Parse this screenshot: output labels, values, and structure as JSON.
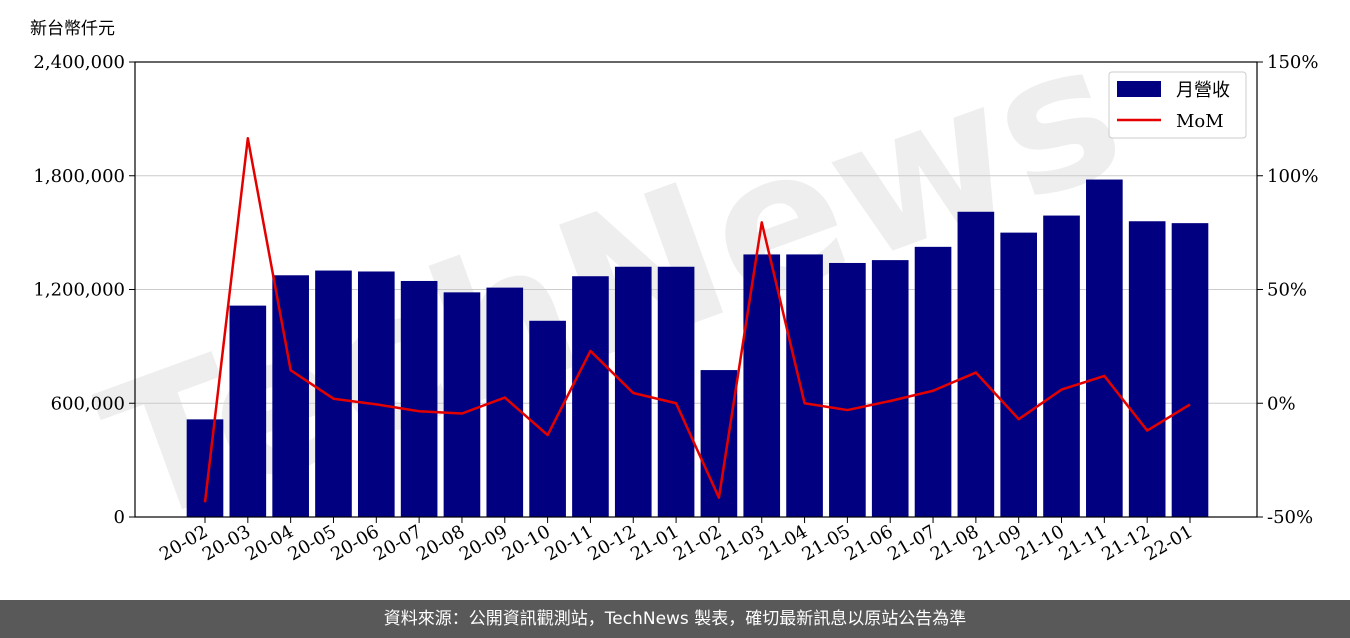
{
  "unit_label": "新台幣仟元",
  "watermark": "TechNews",
  "footer": "資料來源：公開資訊觀測站，TechNews 製表，確切最新訊息以原站公告為準",
  "colors": {
    "bar": "#000080",
    "line": "#e50000",
    "grid": "#cccccc",
    "watermark": "#d9d9d9"
  },
  "chart_data": {
    "type": "bar",
    "categories": [
      "20-02",
      "20-03",
      "20-04",
      "20-05",
      "20-06",
      "20-07",
      "20-08",
      "20-09",
      "20-10",
      "20-11",
      "20-12",
      "21-01",
      "21-02",
      "21-03",
      "21-04",
      "21-05",
      "21-06",
      "21-07",
      "21-08",
      "21-09",
      "21-10",
      "21-11",
      "21-12",
      "22-01"
    ],
    "series": [
      {
        "name": "月營收",
        "axis": "left",
        "type": "bar",
        "values": [
          515000,
          1115000,
          1275000,
          1300000,
          1295000,
          1245000,
          1185000,
          1210000,
          1035000,
          1270000,
          1320000,
          1320000,
          775000,
          1385000,
          1385000,
          1340000,
          1355000,
          1425000,
          1610000,
          1500000,
          1590000,
          1780000,
          1560000,
          1550000
        ]
      },
      {
        "name": "MoM",
        "axis": "right",
        "type": "line",
        "unit": "%",
        "values": [
          -43.5,
          116.5,
          14.5,
          2.0,
          -0.5,
          -3.5,
          -4.5,
          2.5,
          -14.0,
          23.0,
          4.5,
          0.0,
          -41.5,
          79.5,
          0.0,
          -3.0,
          1.0,
          5.5,
          13.5,
          -7.0,
          6.0,
          12.0,
          -12.0,
          -0.5
        ]
      }
    ],
    "ylim_left": [
      0,
      2400000
    ],
    "yticks_left": [
      "0",
      "600,000",
      "1,200,000",
      "1,800,000",
      "2,400,000"
    ],
    "ylim_right": [
      -50,
      150
    ],
    "yticks_right": [
      "-50%",
      "0%",
      "50%",
      "100%",
      "150%"
    ],
    "grid": true,
    "legend": "top-right"
  }
}
